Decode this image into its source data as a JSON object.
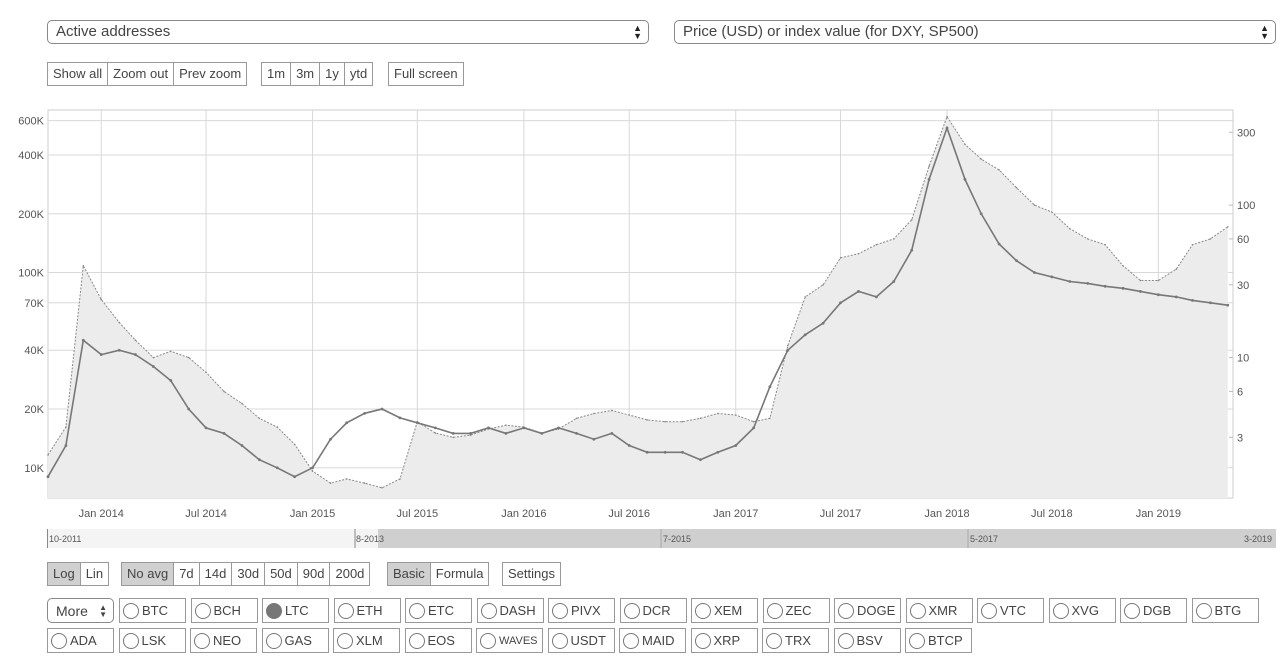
{
  "controls": {
    "metric_select": "Active addresses",
    "price_select": "Price (USD) or index value (for DXY, SP500)",
    "zoom_buttons": [
      "Show all",
      "Zoom out",
      "Prev zoom"
    ],
    "range_buttons": [
      "1m",
      "3m",
      "1y",
      "ytd"
    ],
    "fullscreen": "Full screen",
    "scale_buttons": [
      "Log",
      "Lin"
    ],
    "avg_buttons": [
      "No avg",
      "7d",
      "14d",
      "30d",
      "50d",
      "90d",
      "200d"
    ],
    "mode_buttons": [
      "Basic",
      "Formula"
    ],
    "settings": "Settings",
    "more": "More"
  },
  "navigator_labels": [
    "10-2011",
    "8-2013",
    "7-2015",
    "5-2017",
    "3-2019"
  ],
  "coins_row1": [
    "BTC",
    "BCH",
    "LTC",
    "ETH",
    "ETC",
    "DASH",
    "PIVX",
    "DCR",
    "XEM",
    "ZEC",
    "DOGE",
    "XMR",
    "VTC",
    "XVG",
    "DGB",
    "BTG"
  ],
  "coins_row2": [
    "ADA",
    "LSK",
    "NEO",
    "GAS",
    "XLM",
    "EOS",
    "WAVES",
    "USDT",
    "MAID",
    "XRP",
    "TRX",
    "BSV",
    "BTCP"
  ],
  "selected_coin": "LTC",
  "colors": {
    "line": "#777777",
    "area": "#ececec",
    "area_stroke": "#888888",
    "grid": "#d8d8d8",
    "selected_button": "#d0d0d0"
  },
  "chart_data": {
    "type": "line",
    "left_axis": {
      "label": "",
      "scale": "log",
      "range": [
        7000,
        680000
      ],
      "ticks": [
        10000,
        20000,
        40000,
        70000,
        100000,
        200000,
        400000,
        600000
      ],
      "tick_labels": [
        "10K",
        "20K",
        "40K",
        "70K",
        "100K",
        "200K",
        "400K",
        "600K"
      ]
    },
    "right_axis": {
      "label": "",
      "scale": "log",
      "range": [
        1.2,
        420
      ],
      "ticks": [
        3,
        6,
        10,
        30,
        60,
        100,
        300
      ],
      "tick_labels": [
        "3",
        "6",
        "10",
        "30",
        "60",
        "100",
        "300"
      ]
    },
    "x_axis": {
      "range": [
        "2013-10-01",
        "2019-05-10"
      ],
      "ticks": [
        "2014-01-01",
        "2014-07-01",
        "2015-01-01",
        "2015-07-01",
        "2016-01-01",
        "2016-07-01",
        "2017-01-01",
        "2017-07-01",
        "2018-01-01",
        "2018-07-01",
        "2019-01-01"
      ],
      "tick_labels": [
        "Jan 2014",
        "Jul 2014",
        "Jan 2015",
        "Jul 2015",
        "Jan 2016",
        "Jul 2016",
        "Jan 2017",
        "Jul 2017",
        "Jan 2018",
        "Jul 2018",
        "Jan 2019"
      ]
    },
    "grid": true,
    "series": [
      {
        "axis": "left",
        "style": "line",
        "x": [
          "2013-10-01",
          "2013-11-01",
          "2013-12-01",
          "2014-01-01",
          "2014-02-01",
          "2014-03-01",
          "2014-04-01",
          "2014-05-01",
          "2014-06-01",
          "2014-07-01",
          "2014-08-01",
          "2014-09-01",
          "2014-10-01",
          "2014-11-01",
          "2014-12-01",
          "2015-01-01",
          "2015-02-01",
          "2015-03-01",
          "2015-04-01",
          "2015-05-01",
          "2015-06-01",
          "2015-07-01",
          "2015-08-01",
          "2015-09-01",
          "2015-10-01",
          "2015-11-01",
          "2015-12-01",
          "2016-01-01",
          "2016-02-01",
          "2016-03-01",
          "2016-04-01",
          "2016-05-01",
          "2016-06-01",
          "2016-07-01",
          "2016-08-01",
          "2016-09-01",
          "2016-10-01",
          "2016-11-01",
          "2016-12-01",
          "2017-01-01",
          "2017-02-01",
          "2017-03-01",
          "2017-04-01",
          "2017-05-01",
          "2017-06-01",
          "2017-07-01",
          "2017-08-01",
          "2017-09-01",
          "2017-10-01",
          "2017-11-01",
          "2017-12-01",
          "2018-01-01",
          "2018-02-01",
          "2018-03-01",
          "2018-04-01",
          "2018-05-01",
          "2018-06-01",
          "2018-07-01",
          "2018-08-01",
          "2018-09-01",
          "2018-10-01",
          "2018-11-01",
          "2018-12-01",
          "2019-01-01",
          "2019-02-01",
          "2019-03-01",
          "2019-04-01",
          "2019-05-01"
        ],
        "values": [
          9000,
          13000,
          45000,
          38000,
          40000,
          38000,
          33000,
          28000,
          20000,
          16000,
          15000,
          13000,
          11000,
          10000,
          9000,
          10000,
          14000,
          17000,
          19000,
          20000,
          18000,
          17000,
          16000,
          15000,
          15000,
          16000,
          15000,
          16000,
          15000,
          16000,
          15000,
          14000,
          15000,
          13000,
          12000,
          12000,
          12000,
          11000,
          12000,
          13000,
          16000,
          26000,
          40000,
          48000,
          55000,
          70000,
          80000,
          75000,
          90000,
          130000,
          300000,
          550000,
          300000,
          200000,
          140000,
          115000,
          100000,
          95000,
          90000,
          88000,
          85000,
          83000,
          80000,
          77000,
          75000,
          72000,
          70000,
          68000
        ]
      },
      {
        "axis": "right",
        "style": "area",
        "x": [
          "2013-10-01",
          "2013-11-01",
          "2013-12-01",
          "2014-01-01",
          "2014-02-01",
          "2014-03-01",
          "2014-04-01",
          "2014-05-01",
          "2014-06-01",
          "2014-07-01",
          "2014-08-01",
          "2014-09-01",
          "2014-10-01",
          "2014-11-01",
          "2014-12-01",
          "2015-01-01",
          "2015-02-01",
          "2015-03-01",
          "2015-04-01",
          "2015-05-01",
          "2015-06-01",
          "2015-07-01",
          "2015-08-01",
          "2015-09-01",
          "2015-10-01",
          "2015-11-01",
          "2015-12-01",
          "2016-01-01",
          "2016-02-01",
          "2016-03-01",
          "2016-04-01",
          "2016-05-01",
          "2016-06-01",
          "2016-07-01",
          "2016-08-01",
          "2016-09-01",
          "2016-10-01",
          "2016-11-01",
          "2016-12-01",
          "2017-01-01",
          "2017-02-01",
          "2017-03-01",
          "2017-04-01",
          "2017-05-01",
          "2017-06-01",
          "2017-07-01",
          "2017-08-01",
          "2017-09-01",
          "2017-10-01",
          "2017-11-01",
          "2017-12-01",
          "2018-01-01",
          "2018-02-01",
          "2018-03-01",
          "2018-04-01",
          "2018-05-01",
          "2018-06-01",
          "2018-07-01",
          "2018-08-01",
          "2018-09-01",
          "2018-10-01",
          "2018-11-01",
          "2018-12-01",
          "2019-01-01",
          "2019-02-01",
          "2019-03-01",
          "2019-04-01",
          "2019-05-01"
        ],
        "values": [
          2.3,
          3.5,
          40,
          24,
          17,
          13,
          10,
          11,
          10,
          8,
          6,
          5,
          4,
          3.5,
          2.7,
          1.8,
          1.5,
          1.6,
          1.5,
          1.4,
          1.6,
          3.8,
          3.2,
          3.0,
          3.1,
          3.4,
          3.6,
          3.5,
          3.2,
          3.4,
          4.0,
          4.3,
          4.5,
          4.2,
          3.9,
          3.8,
          3.8,
          4.0,
          4.3,
          4.2,
          3.8,
          4.0,
          12,
          25,
          30,
          45,
          48,
          55,
          60,
          80,
          180,
          380,
          250,
          200,
          170,
          130,
          100,
          90,
          70,
          60,
          55,
          40,
          32,
          32,
          38,
          55,
          60,
          72
        ]
      }
    ]
  }
}
